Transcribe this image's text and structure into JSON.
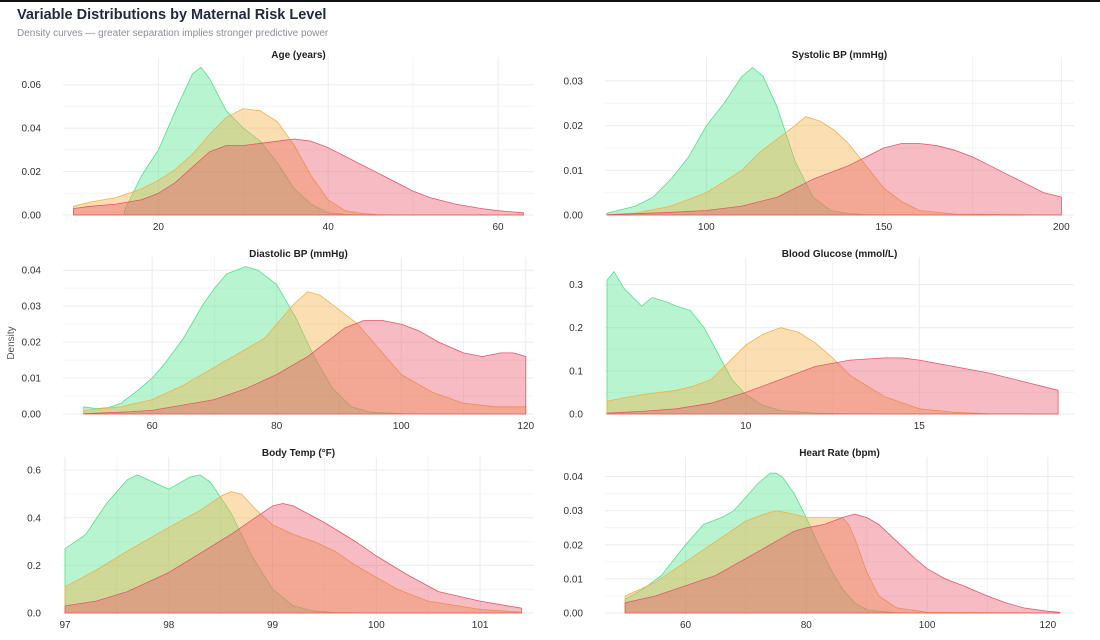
{
  "title": "Variable Distributions by Maternal Risk Level",
  "subtitle": "Density curves — greater separation implies stronger predictive power",
  "y_axis_label": "Density",
  "colors": {
    "low": "#4ee38a",
    "mid": "#f5b041",
    "high": "#e8566a",
    "background": "#ffffff",
    "grid": "#ebebeb",
    "text": "#333333"
  },
  "chart_data": [
    {
      "type": "area",
      "title": "Age (years)",
      "xlim": [
        9,
        64
      ],
      "ylim": [
        0,
        0.07
      ],
      "xticks": [
        20,
        40,
        60
      ],
      "xtick_labels": [
        "20",
        "40",
        "60"
      ],
      "yticks": [
        0,
        0.02,
        0.04,
        0.06
      ],
      "ytick_labels": [
        "0.00",
        "0.02",
        "0.04",
        "0.06"
      ],
      "series": [
        {
          "color": "low",
          "x": [
            16,
            18,
            20,
            22,
            24,
            25,
            26,
            28,
            30,
            32,
            34,
            36,
            38,
            40,
            42,
            44,
            46,
            50,
            55,
            60,
            63
          ],
          "y": [
            0.002,
            0.018,
            0.03,
            0.048,
            0.065,
            0.068,
            0.063,
            0.048,
            0.04,
            0.034,
            0.024,
            0.012,
            0.005,
            0.001,
            0.0003,
            0.0001,
            0,
            0,
            0,
            0,
            0
          ]
        },
        {
          "color": "mid",
          "x": [
            10,
            12,
            15,
            18,
            20,
            22,
            24,
            26,
            28,
            30,
            32,
            34,
            36,
            38,
            40,
            42,
            44,
            46,
            50,
            55,
            60,
            63
          ],
          "y": [
            0.004,
            0.006,
            0.008,
            0.012,
            0.016,
            0.021,
            0.028,
            0.037,
            0.045,
            0.049,
            0.048,
            0.043,
            0.032,
            0.018,
            0.007,
            0.002,
            0.0007,
            0.0002,
            0,
            0,
            0,
            0
          ]
        },
        {
          "color": "high",
          "x": [
            10,
            12,
            15,
            18,
            20,
            22,
            24,
            26,
            28,
            30,
            32,
            34,
            36,
            38,
            40,
            42,
            44,
            46,
            48,
            50,
            52,
            55,
            58,
            60,
            63
          ],
          "y": [
            0.003,
            0.004,
            0.005,
            0.007,
            0.01,
            0.015,
            0.022,
            0.029,
            0.032,
            0.032,
            0.033,
            0.034,
            0.035,
            0.034,
            0.031,
            0.027,
            0.023,
            0.019,
            0.015,
            0.011,
            0.008,
            0.005,
            0.003,
            0.002,
            0.001
          ]
        }
      ]
    },
    {
      "type": "area",
      "title": "Systolic BP (mmHg)",
      "xlim": [
        72,
        203
      ],
      "ylim": [
        0,
        0.034
      ],
      "xticks": [
        100,
        150,
        200
      ],
      "xtick_labels": [
        "100",
        "150",
        "200"
      ],
      "yticks": [
        0,
        0.01,
        0.02,
        0.03
      ],
      "ytick_labels": [
        "0.00",
        "0.01",
        "0.02",
        "0.03"
      ],
      "series": [
        {
          "color": "low",
          "x": [
            72,
            80,
            85,
            90,
            95,
            100,
            105,
            110,
            113,
            116,
            120,
            125,
            130,
            135,
            140,
            145,
            150,
            160,
            200
          ],
          "y": [
            0.0004,
            0.002,
            0.004,
            0.008,
            0.013,
            0.02,
            0.025,
            0.031,
            0.033,
            0.031,
            0.024,
            0.012,
            0.004,
            0.001,
            0.0003,
            0.0001,
            0,
            0,
            0
          ]
        },
        {
          "color": "mid",
          "x": [
            72,
            80,
            90,
            100,
            110,
            115,
            120,
            125,
            128,
            132,
            136,
            140,
            145,
            150,
            155,
            160,
            170,
            200
          ],
          "y": [
            0.0001,
            0.0004,
            0.002,
            0.005,
            0.01,
            0.014,
            0.017,
            0.02,
            0.022,
            0.021,
            0.019,
            0.016,
            0.011,
            0.006,
            0.003,
            0.001,
            0.0002,
            0
          ]
        },
        {
          "color": "high",
          "x": [
            72,
            80,
            90,
            100,
            110,
            120,
            125,
            130,
            140,
            145,
            150,
            155,
            160,
            165,
            170,
            175,
            180,
            185,
            190,
            195,
            200
          ],
          "y": [
            0.0001,
            0.0003,
            0.0006,
            0.001,
            0.002,
            0.004,
            0.006,
            0.008,
            0.011,
            0.013,
            0.015,
            0.016,
            0.016,
            0.0155,
            0.0145,
            0.013,
            0.011,
            0.009,
            0.007,
            0.005,
            0.004
          ]
        }
      ]
    },
    {
      "type": "area",
      "title": "Diastolic BP (mmHg)",
      "xlim": [
        46,
        121
      ],
      "ylim": [
        0,
        0.042
      ],
      "xticks": [
        60,
        80,
        100,
        120
      ],
      "xtick_labels": [
        "60",
        "80",
        "100",
        "120"
      ],
      "yticks": [
        0,
        0.01,
        0.02,
        0.03,
        0.04
      ],
      "ytick_labels": [
        "0.00",
        "0.01",
        "0.02",
        "0.03",
        "0.04"
      ],
      "series": [
        {
          "color": "low",
          "x": [
            49,
            51,
            53,
            55,
            58,
            60,
            62,
            65,
            68,
            70,
            72,
            75,
            77,
            80,
            83,
            86,
            89,
            92,
            95,
            100,
            105,
            120
          ],
          "y": [
            0.002,
            0.0015,
            0.0018,
            0.003,
            0.007,
            0.01,
            0.014,
            0.021,
            0.03,
            0.035,
            0.039,
            0.041,
            0.04,
            0.036,
            0.027,
            0.016,
            0.007,
            0.002,
            0.0005,
            0.0001,
            0,
            0
          ]
        },
        {
          "color": "mid",
          "x": [
            49,
            55,
            60,
            65,
            70,
            74,
            78,
            81,
            83,
            85,
            87,
            90,
            93,
            96,
            100,
            105,
            110,
            115,
            120
          ],
          "y": [
            0.001,
            0.002,
            0.004,
            0.008,
            0.013,
            0.017,
            0.021,
            0.027,
            0.031,
            0.034,
            0.033,
            0.029,
            0.025,
            0.019,
            0.011,
            0.006,
            0.003,
            0.002,
            0.002
          ]
        },
        {
          "color": "high",
          "x": [
            49,
            55,
            60,
            65,
            70,
            75,
            80,
            85,
            88,
            91,
            94,
            97,
            100,
            103,
            106,
            110,
            113,
            116,
            118,
            120
          ],
          "y": [
            0.0001,
            0.0005,
            0.001,
            0.0025,
            0.004,
            0.007,
            0.011,
            0.016,
            0.02,
            0.024,
            0.026,
            0.026,
            0.025,
            0.023,
            0.02,
            0.017,
            0.016,
            0.017,
            0.017,
            0.016
          ]
        }
      ]
    },
    {
      "type": "area",
      "title": "Blood Glucose (mmol/L)",
      "xlim": [
        6,
        19.4
      ],
      "ylim": [
        0,
        0.35
      ],
      "xticks": [
        10,
        15
      ],
      "xtick_labels": [
        "10",
        "15"
      ],
      "yticks": [
        0,
        0.1,
        0.2,
        0.3
      ],
      "ytick_labels": [
        "0.0",
        "0.1",
        "0.2",
        "0.3"
      ],
      "series": [
        {
          "color": "low",
          "x": [
            6.0,
            6.2,
            6.5,
            7.0,
            7.3,
            7.7,
            8.0,
            8.4,
            8.8,
            9.2,
            9.6,
            10.0,
            10.5,
            11,
            12,
            13,
            19
          ],
          "y": [
            0.31,
            0.33,
            0.29,
            0.25,
            0.27,
            0.26,
            0.25,
            0.24,
            0.2,
            0.14,
            0.08,
            0.045,
            0.02,
            0.008,
            0.002,
            0.0005,
            0
          ]
        },
        {
          "color": "mid",
          "x": [
            6.0,
            7.0,
            8.0,
            8.5,
            9.0,
            9.5,
            10.0,
            10.5,
            11.0,
            11.5,
            12.0,
            12.5,
            13.0,
            14.0,
            15.0,
            16,
            17,
            19
          ],
          "y": [
            0.03,
            0.045,
            0.055,
            0.065,
            0.08,
            0.12,
            0.16,
            0.185,
            0.2,
            0.19,
            0.165,
            0.13,
            0.09,
            0.04,
            0.012,
            0.004,
            0.001,
            0
          ]
        },
        {
          "color": "high",
          "x": [
            6.0,
            7.0,
            8.0,
            9.0,
            10.0,
            11.0,
            12.0,
            13.0,
            14.0,
            14.5,
            15.0,
            16.0,
            17.0,
            18.0,
            19.0
          ],
          "y": [
            0.002,
            0.006,
            0.012,
            0.025,
            0.05,
            0.08,
            0.11,
            0.125,
            0.13,
            0.13,
            0.125,
            0.11,
            0.095,
            0.075,
            0.055
          ]
        }
      ]
    },
    {
      "type": "area",
      "title": "Body Temp (°F)",
      "xlim": [
        97,
        101.5
      ],
      "ylim": [
        0,
        0.63
      ],
      "xticks": [
        97,
        98,
        99,
        100,
        101
      ],
      "xtick_labels": [
        "97",
        "98",
        "99",
        "100",
        "101"
      ],
      "yticks": [
        0,
        0.2,
        0.4,
        0.6
      ],
      "ytick_labels": [
        "0.0",
        "0.2",
        "0.4",
        "0.6"
      ],
      "series": [
        {
          "color": "low",
          "x": [
            97.0,
            97.2,
            97.4,
            97.6,
            97.7,
            97.8,
            98.0,
            98.2,
            98.3,
            98.4,
            98.6,
            98.8,
            99.0,
            99.2,
            99.4,
            99.6,
            100.0,
            101.4
          ],
          "y": [
            0.27,
            0.33,
            0.46,
            0.56,
            0.58,
            0.56,
            0.52,
            0.57,
            0.58,
            0.55,
            0.42,
            0.24,
            0.1,
            0.03,
            0.008,
            0.002,
            0,
            0
          ]
        },
        {
          "color": "mid",
          "x": [
            97.0,
            97.3,
            97.6,
            98.0,
            98.3,
            98.5,
            98.6,
            98.7,
            98.85,
            99.0,
            99.2,
            99.4,
            99.6,
            99.8,
            100.0,
            100.2,
            100.5,
            101.0,
            101.4
          ],
          "y": [
            0.11,
            0.18,
            0.26,
            0.36,
            0.43,
            0.49,
            0.51,
            0.5,
            0.43,
            0.37,
            0.33,
            0.3,
            0.26,
            0.2,
            0.15,
            0.1,
            0.05,
            0.015,
            0.003
          ]
        },
        {
          "color": "high",
          "x": [
            97.0,
            97.3,
            97.6,
            98.0,
            98.3,
            98.6,
            98.8,
            99.0,
            99.1,
            99.2,
            99.5,
            99.8,
            100.0,
            100.3,
            100.6,
            101.0,
            101.4
          ],
          "y": [
            0.03,
            0.05,
            0.09,
            0.17,
            0.25,
            0.33,
            0.39,
            0.45,
            0.46,
            0.45,
            0.38,
            0.3,
            0.24,
            0.16,
            0.09,
            0.05,
            0.02
          ]
        }
      ]
    },
    {
      "type": "area",
      "title": "Heart Rate (bpm)",
      "xlim": [
        47,
        124
      ],
      "ylim": [
        0,
        0.044
      ],
      "xticks": [
        60,
        80,
        100,
        120
      ],
      "xtick_labels": [
        "60",
        "80",
        "100",
        "120"
      ],
      "yticks": [
        0,
        0.01,
        0.02,
        0.03,
        0.04
      ],
      "ytick_labels": [
        "0.00",
        "0.01",
        "0.02",
        "0.03",
        "0.04"
      ],
      "series": [
        {
          "color": "low",
          "x": [
            50,
            53,
            56,
            60,
            63,
            66,
            68,
            70,
            72,
            74,
            75,
            76,
            78,
            80,
            82,
            84,
            86,
            88,
            90,
            92,
            95,
            100,
            122
          ],
          "y": [
            0.004,
            0.007,
            0.011,
            0.02,
            0.026,
            0.028,
            0.03,
            0.034,
            0.038,
            0.041,
            0.041,
            0.04,
            0.035,
            0.028,
            0.02,
            0.013,
            0.007,
            0.003,
            0.001,
            0.0005,
            0.0001,
            0,
            0
          ]
        },
        {
          "color": "mid",
          "x": [
            50,
            55,
            60,
            65,
            70,
            73,
            75,
            78,
            80,
            82,
            84,
            86,
            87,
            88,
            90,
            92,
            95,
            100,
            122
          ],
          "y": [
            0.005,
            0.009,
            0.015,
            0.021,
            0.027,
            0.029,
            0.03,
            0.029,
            0.028,
            0.028,
            0.028,
            0.028,
            0.026,
            0.022,
            0.012,
            0.005,
            0.0015,
            0.0002,
            0
          ]
        },
        {
          "color": "high",
          "x": [
            50,
            55,
            60,
            65,
            70,
            75,
            78,
            80,
            83,
            86,
            88,
            90,
            92,
            95,
            98,
            100,
            103,
            106,
            110,
            113,
            116,
            120,
            122
          ],
          "y": [
            0.003,
            0.005,
            0.008,
            0.011,
            0.016,
            0.021,
            0.024,
            0.025,
            0.026,
            0.028,
            0.029,
            0.028,
            0.026,
            0.021,
            0.016,
            0.013,
            0.01,
            0.008,
            0.005,
            0.003,
            0.0015,
            0.0005,
            0.0002
          ]
        }
      ]
    }
  ]
}
